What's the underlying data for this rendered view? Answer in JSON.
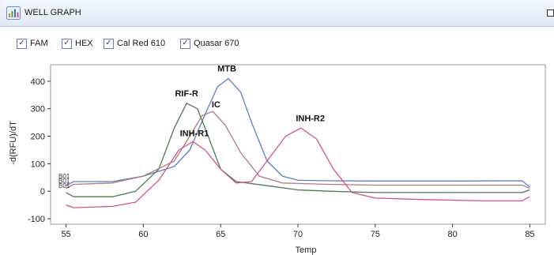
{
  "window": {
    "title": "WELL GRAPH",
    "icon": "chart-icon"
  },
  "filters": [
    {
      "label": "FAM",
      "checked": true
    },
    {
      "label": "HEX",
      "checked": true
    },
    {
      "label": "Cal Red 610",
      "checked": true
    },
    {
      "label": "Quasar 670",
      "checked": true
    }
  ],
  "chart_data": {
    "type": "line",
    "xlabel": "Temp",
    "ylabel": "-d(RFU)/dT",
    "xlim": [
      54,
      86
    ],
    "ylim": [
      -120,
      460
    ],
    "x_ticks": [
      55,
      60,
      65,
      70,
      75,
      80,
      85
    ],
    "y_ticks": [
      -100,
      0,
      100,
      200,
      300,
      400
    ],
    "grid": false,
    "well_labels": [
      "B01",
      "B01",
      "B01"
    ],
    "series": [
      {
        "color": "#5b7fc7",
        "points": [
          [
            55,
            20
          ],
          [
            55.5,
            35
          ],
          [
            58,
            35
          ],
          [
            60,
            55
          ],
          [
            62,
            90
          ],
          [
            63,
            150
          ],
          [
            64,
            280
          ],
          [
            64.8,
            380
          ],
          [
            65.5,
            410
          ],
          [
            66.3,
            360
          ],
          [
            67,
            250
          ],
          [
            68,
            110
          ],
          [
            69,
            55
          ],
          [
            70,
            40
          ],
          [
            72,
            38
          ],
          [
            75,
            37
          ],
          [
            80,
            37
          ],
          [
            84.5,
            38
          ],
          [
            85,
            15
          ]
        ]
      },
      {
        "color": "#4e7a4e",
        "points": [
          [
            55,
            -5
          ],
          [
            55.5,
            -20
          ],
          [
            58,
            -20
          ],
          [
            59.5,
            0
          ],
          [
            61,
            80
          ],
          [
            62,
            230
          ],
          [
            62.8,
            320
          ],
          [
            63.5,
            300
          ],
          [
            64.2,
            200
          ],
          [
            65,
            80
          ],
          [
            66,
            35
          ],
          [
            68,
            20
          ],
          [
            70,
            5
          ],
          [
            72,
            0
          ],
          [
            75,
            -5
          ],
          [
            80,
            -5
          ],
          [
            84.5,
            -5
          ],
          [
            85,
            5
          ]
        ]
      },
      {
        "color": "#b07a7a",
        "points": [
          [
            55,
            10
          ],
          [
            55.5,
            25
          ],
          [
            58,
            30
          ],
          [
            60,
            55
          ],
          [
            62,
            110
          ],
          [
            63,
            200
          ],
          [
            63.8,
            275
          ],
          [
            64.5,
            290
          ],
          [
            65.3,
            240
          ],
          [
            66.3,
            140
          ],
          [
            67.5,
            55
          ],
          [
            69,
            30
          ],
          [
            72,
            25
          ],
          [
            75,
            22
          ],
          [
            80,
            22
          ],
          [
            84.5,
            22
          ],
          [
            85,
            10
          ]
        ]
      },
      {
        "color": "#d4528c",
        "points": [
          [
            55,
            -50
          ],
          [
            55.5,
            -60
          ],
          [
            58,
            -55
          ],
          [
            59.5,
            -40
          ],
          [
            61,
            40
          ],
          [
            62.3,
            150
          ],
          [
            63.2,
            180
          ],
          [
            64,
            150
          ],
          [
            65,
            80
          ],
          [
            66,
            30
          ],
          [
            67,
            35
          ],
          [
            68,
            110
          ],
          [
            69.2,
            200
          ],
          [
            70.2,
            230
          ],
          [
            71.2,
            190
          ],
          [
            72.3,
            80
          ],
          [
            73.5,
            -5
          ],
          [
            75,
            -25
          ],
          [
            78,
            -30
          ],
          [
            82,
            -35
          ],
          [
            84.5,
            -35
          ],
          [
            85,
            -20
          ]
        ]
      }
    ],
    "annotations": [
      {
        "text": "MTB",
        "x": 65.4,
        "y": 435
      },
      {
        "text": "RIF-R",
        "x": 62.8,
        "y": 345
      },
      {
        "text": "IC",
        "x": 64.7,
        "y": 305
      },
      {
        "text": "INH-R1",
        "x": 63.3,
        "y": 200
      },
      {
        "text": "INH-R2",
        "x": 70.8,
        "y": 255
      }
    ]
  }
}
